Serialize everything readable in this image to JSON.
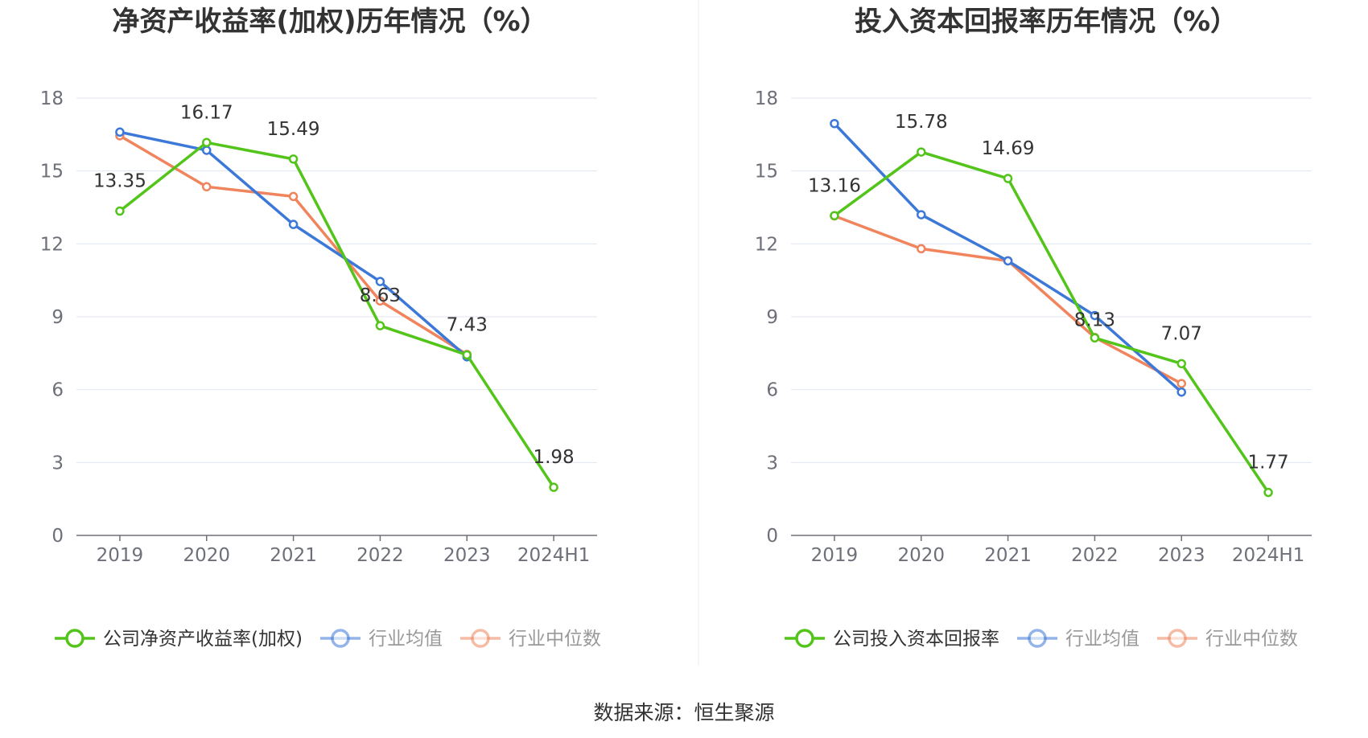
{
  "source_text": "数据来源：恒生聚源",
  "chart_data": [
    {
      "type": "line",
      "title": "净资产收益率(加权)历年情况（%）",
      "categories": [
        "2019",
        "2020",
        "2021",
        "2022",
        "2023",
        "2024H1"
      ],
      "y_ticks": [
        "0",
        "3",
        "6",
        "9",
        "12",
        "15",
        "18"
      ],
      "ylim": [
        0,
        18
      ],
      "grid": true,
      "legend_position": "bottom",
      "series": [
        {
          "name": "公司净资产收益率(加权)",
          "color": "#52c41a",
          "values": [
            13.35,
            16.17,
            15.49,
            8.63,
            7.43,
            1.98
          ],
          "labels": [
            "13.35",
            "16.17",
            "15.49",
            "8.63",
            "7.43",
            "1.98"
          ]
        },
        {
          "name": "行业均值",
          "color": "#3c78d8",
          "values": [
            16.6,
            15.85,
            12.8,
            10.45,
            7.35,
            null
          ]
        },
        {
          "name": "行业中位数",
          "color": "#f0845c",
          "values": [
            16.45,
            14.35,
            13.95,
            9.65,
            7.45,
            null
          ]
        }
      ]
    },
    {
      "type": "line",
      "title": "投入资本回报率历年情况（%）",
      "categories": [
        "2019",
        "2020",
        "2021",
        "2022",
        "2023",
        "2024H1"
      ],
      "y_ticks": [
        "0",
        "3",
        "6",
        "9",
        "12",
        "15",
        "18"
      ],
      "ylim": [
        0,
        18
      ],
      "grid": true,
      "legend_position": "bottom",
      "series": [
        {
          "name": "公司投入资本回报率",
          "color": "#52c41a",
          "values": [
            13.16,
            15.78,
            14.69,
            8.13,
            7.07,
            1.77
          ],
          "labels": [
            "13.16",
            "15.78",
            "14.69",
            "8.13",
            "7.07",
            "1.77"
          ]
        },
        {
          "name": "行业均值",
          "color": "#3c78d8",
          "values": [
            16.95,
            13.2,
            11.3,
            9.05,
            5.9,
            null
          ]
        },
        {
          "name": "行业中位数",
          "color": "#f0845c",
          "values": [
            13.15,
            11.8,
            11.3,
            8.15,
            6.25,
            null
          ]
        }
      ]
    }
  ]
}
